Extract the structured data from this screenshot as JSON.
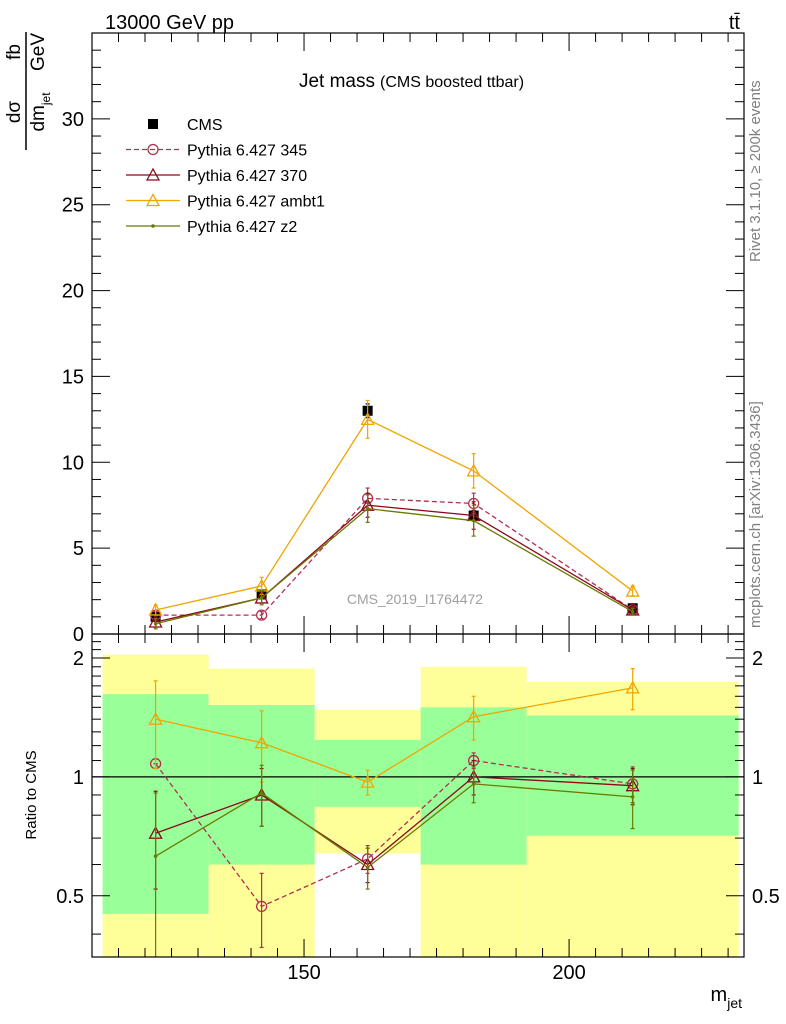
{
  "header": {
    "left": "13000 GeV pp",
    "right": "tt̄"
  },
  "side_text": {
    "top": "Rivet 3.1.10, ≥ 200k events",
    "bottom": "mcplots.cern.ch [arXiv:1306.3436]"
  },
  "chart_data": [
    {
      "type": "line",
      "title": "Jet mass",
      "subtitle": "(CMS boosted ttbar)",
      "watermark": "CMS_2019_I1764472",
      "ylabel": {
        "num_a": "dσ",
        "num_b": "fb",
        "den_a": "dm",
        "den_sub": "jet",
        "den_b": "GeV"
      },
      "xlim": [
        110,
        233
      ],
      "ylim": [
        0,
        35
      ],
      "yticks": [
        0,
        5,
        10,
        15,
        20,
        25,
        30
      ],
      "ytick_labels": [
        "0",
        "5",
        "10",
        "15",
        "20",
        "25",
        "30"
      ],
      "legend_position": "top-left",
      "x": [
        122,
        142,
        162,
        182,
        212
      ],
      "series": [
        {
          "name": "CMS",
          "color": "#000000",
          "marker": "square",
          "dash": "",
          "values": [
            1.0,
            2.3,
            13.0,
            6.9,
            1.5
          ],
          "err": [
            0.1,
            0.2,
            0.4,
            0.3,
            0.1
          ]
        },
        {
          "name": "Pythia 6.427 345",
          "color": "#b03050",
          "marker": "circle",
          "dash": "5,3",
          "values": [
            1.1,
            1.1,
            7.9,
            7.6,
            1.4
          ],
          "err": [
            0.2,
            0.2,
            0.6,
            0.6,
            0.2
          ]
        },
        {
          "name": "Pythia 6.427 370",
          "color": "#8b0a1e",
          "marker": "triangle",
          "dash": "",
          "values": [
            0.7,
            2.1,
            7.5,
            6.9,
            1.4
          ],
          "err": [
            0.3,
            0.3,
            0.7,
            0.8,
            0.2
          ]
        },
        {
          "name": "Pythia 6.427 ambt1",
          "color": "#f0a500",
          "marker": "triangle",
          "dash": "",
          "values": [
            1.4,
            2.8,
            12.5,
            9.5,
            2.5
          ],
          "err": [
            0.3,
            0.5,
            1.1,
            1.0,
            0.3
          ]
        },
        {
          "name": "Pythia 6.427 z2",
          "color": "#6b7a00",
          "marker": "dot",
          "dash": "",
          "values": [
            0.6,
            2.1,
            7.3,
            6.6,
            1.3
          ],
          "err": [
            0.3,
            0.4,
            0.8,
            0.9,
            0.2
          ]
        }
      ]
    },
    {
      "type": "line",
      "ylabel": "Ratio to CMS",
      "xlabel": "m",
      "xlabel_sub": "jet",
      "xlim": [
        110,
        233
      ],
      "ylim": [
        0.35,
        2.3
      ],
      "log_y": true,
      "xticks": [
        150,
        200
      ],
      "xtick_labels": [
        "150",
        "200"
      ],
      "yticks": [
        0.5,
        1,
        2
      ],
      "ytick_labels": [
        "0.5",
        "1",
        "2"
      ],
      "bands": {
        "bin_edges": [
          112,
          132,
          152,
          172,
          192,
          232
        ],
        "inner": [
          [
            0.45,
            1.62
          ],
          [
            0.6,
            1.52
          ],
          [
            0.84,
            1.24
          ],
          [
            0.6,
            1.5
          ],
          [
            0.71,
            1.43
          ]
        ],
        "outer": [
          [
            0.35,
            2.04
          ],
          [
            0.35,
            1.88
          ],
          [
            0.64,
            1.48
          ],
          [
            0.35,
            1.9
          ],
          [
            0.35,
            1.74
          ]
        ],
        "inner_color": "#99ff99",
        "outer_color": "#ffff99"
      },
      "x": [
        122,
        142,
        162,
        182,
        212
      ],
      "series": [
        {
          "name": "Pythia 6.427 345",
          "color": "#b03050",
          "marker": "circle",
          "dash": "5,3",
          "values": [
            1.08,
            0.47,
            0.62,
            1.1,
            0.96
          ],
          "err": [
            0.0,
            0.1,
            0.05,
            0.05,
            0.1
          ]
        },
        {
          "name": "Pythia 6.427 370",
          "color": "#8b0a1e",
          "marker": "triangle",
          "dash": "",
          "values": [
            0.72,
            0.9,
            0.6,
            1.0,
            0.95
          ],
          "err": [
            0.2,
            0.15,
            0.06,
            0.1,
            0.1
          ]
        },
        {
          "name": "Pythia 6.427 ambt1",
          "color": "#f0a500",
          "marker": "triangle",
          "dash": "",
          "values": [
            1.4,
            1.22,
            0.97,
            1.42,
            1.68
          ],
          "err": [
            0.35,
            0.25,
            0.07,
            0.18,
            0.2
          ]
        },
        {
          "name": "Pythia 6.427 z2",
          "color": "#6b7a00",
          "marker": "dot",
          "dash": "",
          "values": [
            0.63,
            0.91,
            0.59,
            0.96,
            0.89
          ],
          "err": [
            0.28,
            0.16,
            0.07,
            0.1,
            0.15
          ]
        }
      ]
    }
  ]
}
